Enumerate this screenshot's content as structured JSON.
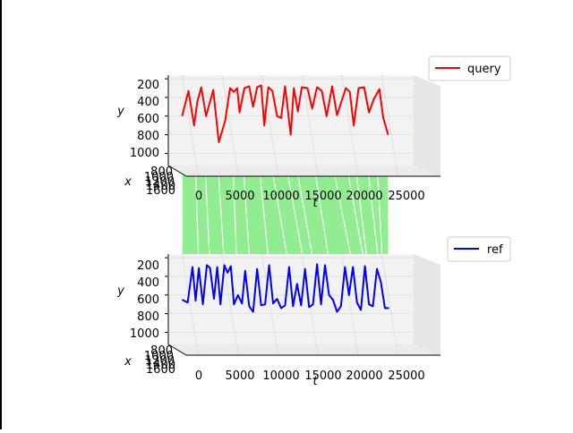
{
  "chart_data": [
    {
      "type": "line",
      "projection": "3d",
      "title": "",
      "series": [
        {
          "name": "query",
          "color": "#ff0000",
          "t": [
            0,
            800,
            1500,
            1900,
            2400,
            3000,
            3900,
            4600,
            5400,
            6000,
            6500,
            6900,
            7200,
            7800,
            8400,
            8900,
            9400,
            9900,
            10300,
            10800,
            11300,
            11900,
            12400,
            12900,
            13600,
            14000,
            14500,
            15000,
            15700,
            16300,
            16900,
            17500,
            18100,
            18800,
            19400,
            19900,
            20500,
            21000,
            21500,
            22100,
            22800,
            23400,
            24000,
            24700,
            25200,
            25800
          ],
          "y": [
            600,
            330,
            700,
            450,
            290,
            600,
            320,
            880,
            650,
            300,
            340,
            300,
            560,
            300,
            280,
            500,
            290,
            270,
            700,
            290,
            330,
            600,
            620,
            280,
            800,
            300,
            550,
            290,
            300,
            520,
            290,
            330,
            600,
            280,
            590,
            460,
            300,
            340,
            700,
            300,
            290,
            560,
            420,
            310,
            620,
            800
          ]
        }
      ],
      "xlabel": "t",
      "ylabel": "y",
      "zlabel": "x",
      "t_ticks": [
        "0",
        "5000",
        "10000",
        "15000",
        "20000",
        "25000"
      ],
      "y_ticks": [
        "200",
        "400",
        "600",
        "800",
        "1000"
      ],
      "x_ticks": [
        "800",
        "1000",
        "1200",
        "1400",
        "1600"
      ],
      "t_range": [
        -1500,
        29000
      ],
      "y_range": [
        180,
        1120
      ],
      "legend": "top-right",
      "grid": true
    },
    {
      "type": "line",
      "projection": "3d",
      "title": "",
      "series": [
        {
          "name": "ref",
          "color": "#0000ff",
          "t": [
            0,
            700,
            1300,
            1700,
            2100,
            2600,
            3100,
            3500,
            4000,
            4400,
            4800,
            5300,
            5700,
            6100,
            6500,
            7000,
            7500,
            7900,
            8400,
            8900,
            9400,
            9900,
            10400,
            10900,
            11400,
            11900,
            12400,
            12900,
            13400,
            13900,
            14400,
            14900,
            15400,
            15900,
            16400,
            16900,
            17400,
            17900,
            18400,
            18900,
            19400,
            19900,
            20400,
            20900,
            21400,
            21900,
            22400,
            22900,
            23400,
            23900,
            24400,
            24900,
            25400,
            25900
          ],
          "y": [
            650,
            680,
            300,
            660,
            310,
            700,
            280,
            310,
            640,
            300,
            700,
            280,
            360,
            290,
            700,
            600,
            690,
            340,
            720,
            780,
            320,
            710,
            700,
            280,
            690,
            640,
            740,
            710,
            300,
            720,
            480,
            710,
            320,
            730,
            700,
            270,
            700,
            280,
            600,
            650,
            780,
            720,
            300,
            600,
            300,
            680,
            760,
            290,
            700,
            720,
            320,
            460,
            740,
            740
          ]
        }
      ],
      "xlabel": "t",
      "ylabel": "y",
      "zlabel": "x",
      "t_ticks": [
        "0",
        "5000",
        "10000",
        "15000",
        "20000",
        "25000"
      ],
      "y_ticks": [
        "200",
        "400",
        "600",
        "800",
        "1000"
      ],
      "x_ticks": [
        "800",
        "1000",
        "1200",
        "1400",
        "1600"
      ],
      "t_range": [
        -1500,
        29000
      ],
      "y_range": [
        180,
        1120
      ],
      "legend": "top-right",
      "grid": true
    }
  ],
  "alignment": {
    "color": "#90ee90",
    "pairs": [
      [
        0,
        0
      ],
      [
        2,
        4
      ],
      [
        4,
        7
      ],
      [
        6,
        11
      ],
      [
        9,
        15
      ],
      [
        12,
        19
      ],
      [
        15,
        23
      ],
      [
        18,
        28
      ],
      [
        21,
        32
      ],
      [
        24,
        36
      ],
      [
        27,
        40
      ],
      [
        30,
        44
      ],
      [
        33,
        47
      ],
      [
        36,
        49
      ],
      [
        39,
        51
      ],
      [
        42,
        52
      ],
      [
        45,
        53
      ]
    ]
  }
}
